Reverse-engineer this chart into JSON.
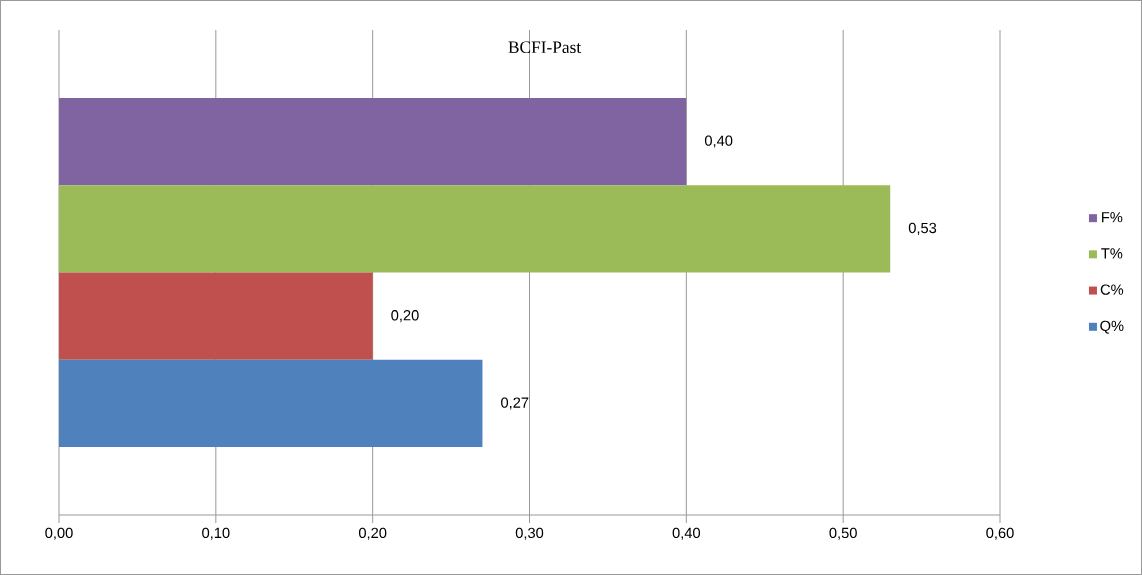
{
  "chart_data": {
    "type": "bar",
    "orientation": "horizontal",
    "title": "BCFI-Past",
    "categories": [
      null
    ],
    "series": [
      {
        "name": "F%",
        "color": "#8064a2",
        "values": [
          0.4
        ],
        "value_labels": [
          "0,40"
        ]
      },
      {
        "name": "T%",
        "color": "#9bbb59",
        "values": [
          0.53
        ],
        "value_labels": [
          "0,53"
        ]
      },
      {
        "name": "C%",
        "color": "#c0504d",
        "values": [
          0.2
        ],
        "value_labels": [
          "0,20"
        ]
      },
      {
        "name": "Q%",
        "color": "#4f81bd",
        "values": [
          0.27
        ],
        "value_labels": [
          "0,27"
        ]
      }
    ],
    "xlim": [
      0,
      0.6
    ],
    "xticks": [
      {
        "value": 0,
        "label": "0,00"
      },
      {
        "value": 0.1,
        "label": "0,10"
      },
      {
        "value": 0.2,
        "label": "0,20"
      },
      {
        "value": 0.3,
        "label": "0,30"
      },
      {
        "value": 0.4,
        "label": "0,40"
      },
      {
        "value": 0.5,
        "label": "0,50"
      },
      {
        "value": 0.6,
        "label": "0,60"
      }
    ],
    "grid": "x",
    "legend": "right"
  }
}
